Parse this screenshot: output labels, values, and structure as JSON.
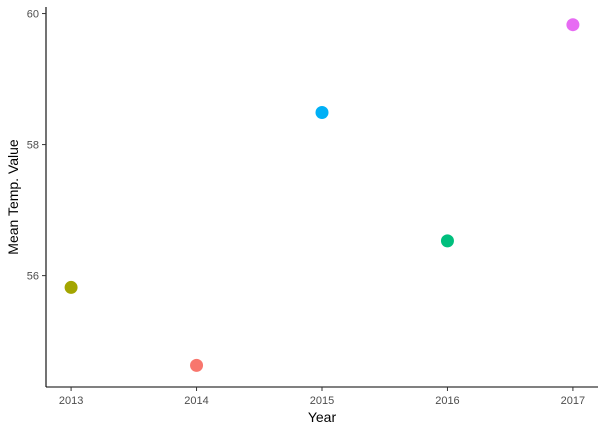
{
  "chart_data": {
    "type": "scatter",
    "title": "",
    "xlabel": "Year",
    "ylabel": "Mean Temp. Value",
    "x_ticks": [
      "2013",
      "2014",
      "2015",
      "2016",
      "2017"
    ],
    "y_ticks": [
      56,
      58,
      60
    ],
    "xlim": [
      2012.8,
      2017.2
    ],
    "ylim": [
      54.3,
      60.1
    ],
    "grid": false,
    "legend": "none",
    "points": [
      {
        "x": 2013,
        "y": 55.82,
        "color": "#A3A500"
      },
      {
        "x": 2014,
        "y": 54.63,
        "color": "#F8766D"
      },
      {
        "x": 2015,
        "y": 58.49,
        "color": "#00B0F6"
      },
      {
        "x": 2016,
        "y": 56.53,
        "color": "#00BF7D"
      },
      {
        "x": 2017,
        "y": 59.83,
        "color": "#E76BF3"
      }
    ]
  }
}
